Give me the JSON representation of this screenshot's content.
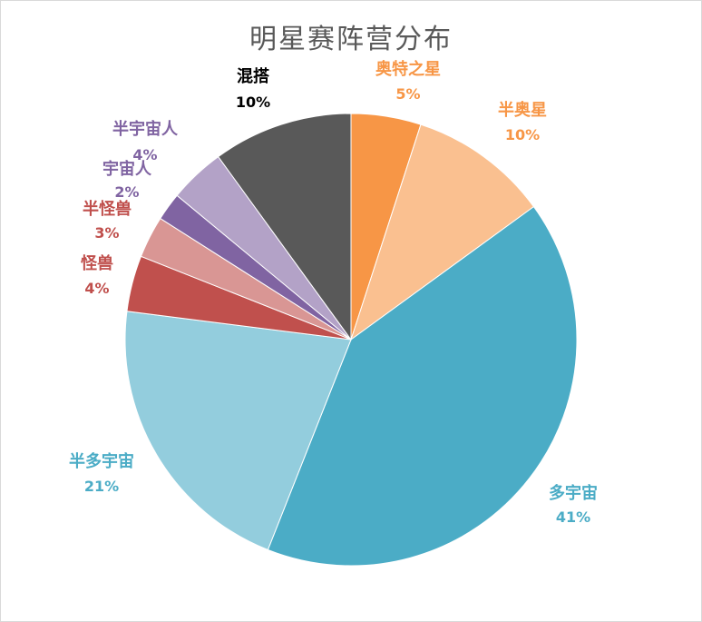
{
  "chart_data": {
    "type": "pie",
    "title": "明星赛阵营分布",
    "slices": [
      {
        "label": "奥特之星",
        "value": 5,
        "display": "5%",
        "color": "#f79646",
        "label_color": "#f79646"
      },
      {
        "label": "半奥星",
        "value": 10,
        "display": "10%",
        "color": "#fac090",
        "label_color": "#f79646"
      },
      {
        "label": "多宇宙",
        "value": 41,
        "display": "41%",
        "color": "#4bacc6",
        "label_color": "#4bacc6"
      },
      {
        "label": "半多宇宙",
        "value": 21,
        "display": "21%",
        "color": "#93cddd",
        "label_color": "#4bacc6"
      },
      {
        "label": "怪兽",
        "value": 4,
        "display": "4%",
        "color": "#c0504d",
        "label_color": "#c0504d"
      },
      {
        "label": "半怪兽",
        "value": 3,
        "display": "3%",
        "color": "#d99694",
        "label_color": "#c0504d"
      },
      {
        "label": "宇宙人",
        "value": 2,
        "display": "2%",
        "color": "#8064a2",
        "label_color": "#8064a2"
      },
      {
        "label": "半宇宙人",
        "value": 4,
        "display": "4%",
        "color": "#b3a2c7",
        "label_color": "#8064a2"
      },
      {
        "label": "混搭",
        "value": 10,
        "display": "10%",
        "color": "#595959",
        "label_color": "#000000"
      }
    ],
    "start_angle": "12 o'clock",
    "direction": "clockwise",
    "legend": "none"
  }
}
